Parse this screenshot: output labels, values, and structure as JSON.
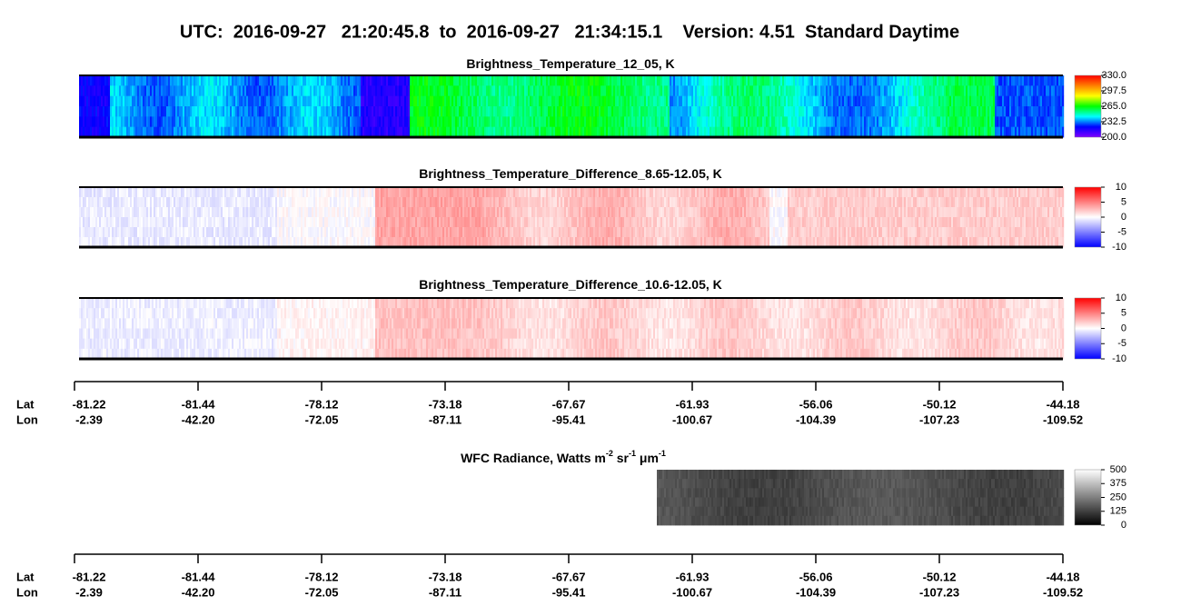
{
  "title": "UTC:  2016-09-27   21:20:45.8  to  2016-09-27   21:34:15.1    Version: 4.51  Standard Daytime",
  "panels": [
    {
      "title": [
        "Brightness_Temperature_12_05, K"
      ],
      "colorbar": {
        "lim": [
          200,
          330
        ],
        "ticks": [
          {
            "value": 330,
            "label": "330.0"
          },
          {
            "value": 297.5,
            "label": "297.5"
          },
          {
            "value": 265,
            "label": "265.0"
          },
          {
            "value": 232.5,
            "label": "232.5"
          },
          {
            "value": 200,
            "label": "200.0"
          }
        ],
        "colormap": [
          "#8000ff",
          "#0000ff",
          "#00ffff",
          "#00ff00",
          "#ffff00",
          "#ff8000",
          "#ff0000"
        ]
      }
    },
    {
      "title": [
        "Brightness_Temperature_Difference_8.65-12.05, K"
      ],
      "colorbar": {
        "lim": [
          -10,
          10
        ],
        "ticks": [
          10,
          5,
          0,
          -5,
          -10
        ],
        "colormap": [
          "#0000ff",
          "#8080ff",
          "#ffffff",
          "#ff8080",
          "#ff0000"
        ]
      }
    },
    {
      "title": [
        "Brightness_Temperature_Difference_10.6-12.05, K"
      ],
      "colorbar": {
        "lim": [
          -10,
          10
        ],
        "ticks": [
          10,
          5,
          0,
          -5,
          -10
        ],
        "colormap": [
          "#0000ff",
          "#8080ff",
          "#ffffff",
          "#ff8080",
          "#ff0000"
        ]
      }
    },
    {
      "title": [
        "WFC Radiance, Watts m",
        "-2",
        " sr",
        "-1",
        " μm",
        "-1"
      ],
      "colorbar": {
        "lim": [
          0,
          500
        ],
        "ticks": [
          500,
          375,
          250,
          125,
          0
        ],
        "colormap": [
          "#000000",
          "#ffffff"
        ]
      }
    }
  ],
  "axes": [
    {
      "row_labels": [
        "Lat",
        "Lon"
      ],
      "lat": [
        "-81.22",
        "-81.44",
        "-78.12",
        "-73.18",
        "-67.67",
        "-61.93",
        "-56.06",
        "-50.12",
        "-44.18"
      ],
      "lon": [
        "-2.39",
        "-42.20",
        "-72.05",
        "-87.11",
        "-95.41",
        "-100.67",
        "-104.39",
        "-107.23",
        "-109.52"
      ]
    },
    {
      "row_labels": [
        "Lat",
        "Lon"
      ],
      "lat": [
        "-81.22",
        "-81.44",
        "-78.12",
        "-73.18",
        "-67.67",
        "-61.93",
        "-56.06",
        "-50.12",
        "-44.18"
      ],
      "lon": [
        "-2.39",
        "-42.20",
        "-72.05",
        "-87.11",
        "-95.41",
        "-100.67",
        "-104.39",
        "-107.23",
        "-109.52"
      ]
    }
  ]
}
